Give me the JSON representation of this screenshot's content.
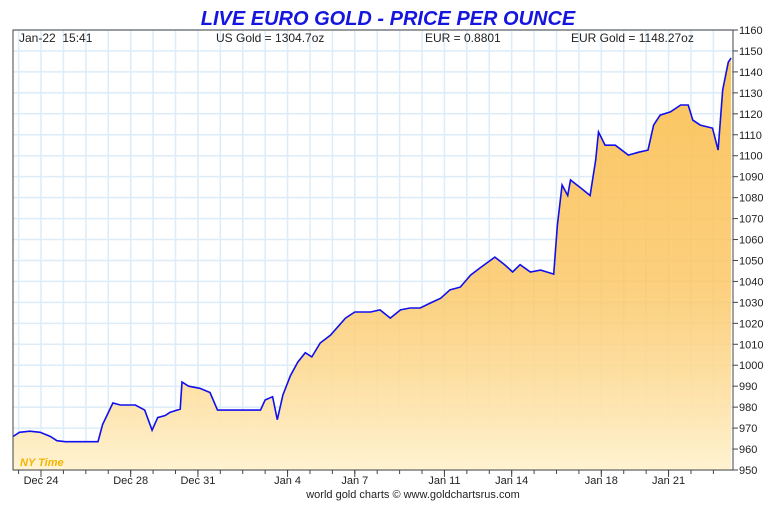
{
  "chart_data": {
    "type": "area",
    "title": "LIVE EURO GOLD - PRICE PER OUNCE",
    "header": {
      "timestamp": "Jan-22  15:41",
      "us_gold": "US Gold = 1304.7oz",
      "eur_rate": "EUR = 0.8801",
      "eur_gold": "EUR Gold = 1148.27oz"
    },
    "timezone_label": "NY Time",
    "footer": "world gold charts © www.goldchartsrus.com",
    "ylim": [
      950,
      1160
    ],
    "yticks": [
      950,
      960,
      970,
      980,
      990,
      1000,
      1010,
      1020,
      1030,
      1040,
      1050,
      1060,
      1070,
      1080,
      1090,
      1100,
      1110,
      1120,
      1130,
      1140,
      1150,
      1160
    ],
    "xticks": [
      {
        "label": "Dec 24",
        "date": "2018-12-24"
      },
      {
        "label": "Dec 28",
        "date": "2018-12-28"
      },
      {
        "label": "Dec 31",
        "date": "2018-12-31"
      },
      {
        "label": "Jan 4",
        "date": "2019-01-04"
      },
      {
        "label": "Jan 7",
        "date": "2019-01-07"
      },
      {
        "label": "Jan 11",
        "date": "2019-01-11"
      },
      {
        "label": "Jan 14",
        "date": "2019-01-14"
      },
      {
        "label": "Jan 18",
        "date": "2019-01-18"
      },
      {
        "label": "Jan 21",
        "date": "2019-01-21"
      }
    ],
    "xlim": [
      "2018-12-22T18:00",
      "2019-01-23T21:00"
    ],
    "grid": true,
    "colors": {
      "line": "#1010ee",
      "title": "#1515e0",
      "fill_top": "#fbc45e",
      "fill_bottom": "#fff3d2",
      "grid": "#dcecf8",
      "timezone": "#f5b400"
    },
    "points": [
      [
        "2018-12-22T18:00",
        966
      ],
      [
        "2018-12-23T01:00",
        968
      ],
      [
        "2018-12-23T12:00",
        968.5
      ],
      [
        "2018-12-23T23:00",
        968
      ],
      [
        "2018-12-24T10:00",
        966
      ],
      [
        "2018-12-24T17:00",
        964
      ],
      [
        "2018-12-25T02:00",
        963.5
      ],
      [
        "2018-12-26T13:00",
        963.5
      ],
      [
        "2018-12-26T18:00",
        971.7
      ],
      [
        "2018-12-27T05:00",
        982
      ],
      [
        "2018-12-27T13:00",
        981
      ],
      [
        "2018-12-28T05:00",
        981
      ],
      [
        "2018-12-28T15:00",
        978.6
      ],
      [
        "2018-12-28T23:00",
        969
      ],
      [
        "2018-12-29T05:00",
        975
      ],
      [
        "2018-12-29T13:00",
        976
      ],
      [
        "2018-12-29T18:00",
        977.5
      ],
      [
        "2018-12-30T05:00",
        979
      ],
      [
        "2018-12-30T07:00",
        992
      ],
      [
        "2018-12-30T14:00",
        990
      ],
      [
        "2018-12-31T02:00",
        989
      ],
      [
        "2018-12-31T13:00",
        987
      ],
      [
        "2018-12-31T21:00",
        978.6
      ],
      [
        "2019-01-01T02:00",
        978.6
      ],
      [
        "2019-01-02T19:00",
        978.6
      ],
      [
        "2019-01-03T00:00",
        983.4
      ],
      [
        "2019-01-03T08:00",
        985
      ],
      [
        "2019-01-03T13:00",
        974
      ],
      [
        "2019-01-03T19:00",
        985.8
      ],
      [
        "2019-01-04T03:00",
        995
      ],
      [
        "2019-01-04T11:00",
        1001.5
      ],
      [
        "2019-01-04T19:00",
        1006
      ],
      [
        "2019-01-05T02:00",
        1004
      ],
      [
        "2019-01-05T11:00",
        1010.6
      ],
      [
        "2019-01-05T22:00",
        1014.4
      ],
      [
        "2019-01-06T14:00",
        1022.5
      ],
      [
        "2019-01-07T00:00",
        1025.4
      ],
      [
        "2019-01-07T17:00",
        1025.4
      ],
      [
        "2019-01-08T03:00",
        1026.4
      ],
      [
        "2019-01-08T14:00",
        1022.5
      ],
      [
        "2019-01-09T01:00",
        1026.4
      ],
      [
        "2019-01-09T11:00",
        1027.3
      ],
      [
        "2019-01-09T22:00",
        1027.3
      ],
      [
        "2019-01-10T09:00",
        1029.7
      ],
      [
        "2019-01-10T20:00",
        1032
      ],
      [
        "2019-01-11T06:00",
        1036
      ],
      [
        "2019-01-11T17:00",
        1037.3
      ],
      [
        "2019-01-12T04:00",
        1043
      ],
      [
        "2019-01-12T14:00",
        1046.4
      ],
      [
        "2019-01-13T01:00",
        1050
      ],
      [
        "2019-01-13T06:00",
        1051.6
      ],
      [
        "2019-01-13T17:00",
        1047.8
      ],
      [
        "2019-01-14T01:00",
        1044.5
      ],
      [
        "2019-01-14T09:00",
        1048
      ],
      [
        "2019-01-14T20:00",
        1044.5
      ],
      [
        "2019-01-15T07:00",
        1045.4
      ],
      [
        "2019-01-15T21:00",
        1043.5
      ],
      [
        "2019-01-16T01:00",
        1067
      ],
      [
        "2019-01-16T06:00",
        1086
      ],
      [
        "2019-01-16T12:00",
        1081
      ],
      [
        "2019-01-16T15:00",
        1088.4
      ],
      [
        "2019-01-17T02:00",
        1084.6
      ],
      [
        "2019-01-17T12:00",
        1081
      ],
      [
        "2019-01-17T18:00",
        1098
      ],
      [
        "2019-01-17T21:00",
        1111.3
      ],
      [
        "2019-01-18T04:00",
        1105
      ],
      [
        "2019-01-18T15:00",
        1105
      ],
      [
        "2019-01-19T05:00",
        1100.3
      ],
      [
        "2019-01-19T16:00",
        1101.7
      ],
      [
        "2019-01-20T02:00",
        1102.7
      ],
      [
        "2019-01-20T08:00",
        1114.6
      ],
      [
        "2019-01-20T15:00",
        1119.4
      ],
      [
        "2019-01-21T02:00",
        1120.9
      ],
      [
        "2019-01-21T13:00",
        1124.2
      ],
      [
        "2019-01-21T21:00",
        1124.2
      ],
      [
        "2019-01-22T02:00",
        1117
      ],
      [
        "2019-01-22T10:00",
        1114.6
      ],
      [
        "2019-01-22T23:00",
        1113.2
      ],
      [
        "2019-01-23T05:00",
        1102.7
      ],
      [
        "2019-01-23T10:00",
        1131.4
      ],
      [
        "2019-01-23T16:00",
        1144.7
      ],
      [
        "2019-01-23T19:00",
        1146.6
      ]
    ]
  }
}
